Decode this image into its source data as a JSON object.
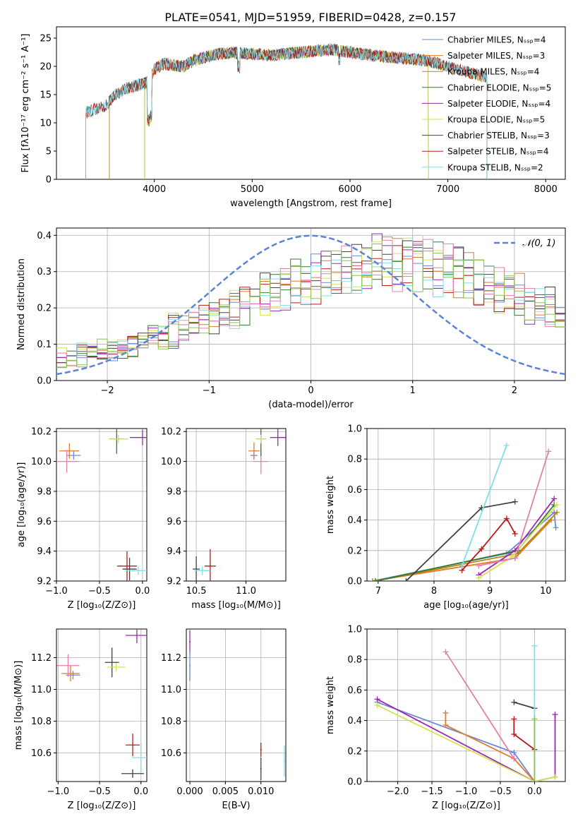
{
  "figure_title": "PLATE=0541, MJD=51959, FIBERID=0428, z=0.157",
  "colors": {
    "Chabrier MILES": "#6a89d9",
    "Salpeter MILES": "#e07b2a",
    "Kroupa MILES": "#b8860b",
    "Chabrier ELODIE": "#2e7d32",
    "Salpeter ELODIE": "#9c27b0",
    "Kroupa ELODIE": "#d4e157",
    "Chabrier STELIB": "#424242",
    "Salpeter STELIB": "#b71c1c",
    "Kroupa STELIB": "#80deea",
    "extra_pink": "#e67eb0",
    "extra_green": "#8bc34a",
    "gaussian": "#5b84d6"
  },
  "chart_data": [
    {
      "id": "spectrum",
      "type": "line",
      "title": "PLATE=0541, MJD=51959, FIBERID=0428, z=0.157",
      "xlabel": "wavelength [Angstrom, rest frame]",
      "ylabel": "Flux [fλ10⁻¹⁷ erg cm⁻² s⁻¹ A⁻¹]",
      "xlim": [
        3000,
        8200
      ],
      "ylim": [
        0,
        27
      ],
      "xticks": [
        "4000",
        "5000",
        "6000",
        "7000",
        "8000"
      ],
      "yticks": [
        "0",
        "5",
        "10",
        "15",
        "20",
        "25"
      ],
      "legend_position": "top-right",
      "legend": [
        "Chabrier MILES, Nₛₛₚ=4",
        "Salpeter MILES, Nₛₛₚ=3",
        "Kroupa MILES, Nₛₛₚ=4",
        "Chabrier ELODIE, Nₛₛₚ=5",
        "Salpeter ELODIE, Nₛₛₚ=4",
        "Kroupa ELODIE, Nₛₛₚ=5",
        "Chabrier STELIB, Nₛₛₚ=3",
        "Salpeter STELIB, Nₛₛₚ=4",
        "Kroupa STELIB, Nₛₛₚ=2"
      ],
      "continuum": {
        "x": [
          3300,
          3400,
          3500,
          3600,
          3700,
          3800,
          3900,
          3950,
          4000,
          4100,
          4200,
          4300,
          4400,
          4500,
          4600,
          4800,
          5000,
          5200,
          5500,
          5800,
          6000,
          6200,
          6500,
          6800,
          7000,
          7200,
          7400
        ],
        "y": [
          11.8,
          12.5,
          13.0,
          15.0,
          16.0,
          16.5,
          17.0,
          17.5,
          19.5,
          20.5,
          20.2,
          20.0,
          21.0,
          21.5,
          22.0,
          22.5,
          22.2,
          22.0,
          22.5,
          23.0,
          22.5,
          22.0,
          21.5,
          21.0,
          20.0,
          19.0,
          18.0
        ]
      }
    },
    {
      "id": "residuals",
      "type": "bar",
      "xlabel": "(data-model)/error",
      "ylabel": "Normed distribution",
      "xlim": [
        -2.5,
        2.5
      ],
      "ylim": [
        0,
        0.42
      ],
      "xticks": [
        "−2",
        "−1",
        "0",
        "1",
        "2"
      ],
      "yticks": [
        "0.0",
        "0.1",
        "0.2",
        "0.3",
        "0.4"
      ],
      "legend": [
        "𝒩(0, 1)"
      ],
      "legend_position": "top-right",
      "bin_edges_start": -2.5,
      "bin_width": 0.1,
      "envelope": [
        0.06,
        0.06,
        0.07,
        0.07,
        0.08,
        0.08,
        0.09,
        0.1,
        0.11,
        0.12,
        0.13,
        0.14,
        0.15,
        0.16,
        0.17,
        0.18,
        0.19,
        0.2,
        0.22,
        0.23,
        0.24,
        0.25,
        0.26,
        0.27,
        0.28,
        0.29,
        0.3,
        0.31,
        0.31,
        0.32,
        0.32,
        0.33,
        0.33,
        0.33,
        0.33,
        0.33,
        0.32,
        0.32,
        0.31,
        0.3,
        0.29,
        0.28,
        0.27,
        0.26,
        0.25,
        0.24,
        0.22,
        0.21,
        0.2,
        0.18
      ]
    },
    {
      "id": "age_vs_Z",
      "type": "scatter",
      "xlabel": "Z [log₁₀(Z/Z⊙)]",
      "ylabel": "age  [log₁₀(age/yr)]",
      "xlim": [
        -1.0,
        0.05
      ],
      "ylim": [
        9.2,
        10.22
      ],
      "xticks": [
        "−1.0",
        "−0.5",
        "0.0"
      ],
      "yticks": [
        "9.2",
        "9.4",
        "9.6",
        "9.8",
        "10.0",
        "10.2"
      ],
      "points": [
        {
          "x": -0.8,
          "y": 10.04,
          "c": "Chabrier MILES"
        },
        {
          "x": -0.85,
          "y": 10.07,
          "c": "Salpeter MILES"
        },
        {
          "x": -0.88,
          "y": 10.0,
          "c": "extra_pink"
        },
        {
          "x": -0.3,
          "y": 10.15,
          "c": "Chabrier ELODIE"
        },
        {
          "x": -0.28,
          "y": 10.15,
          "c": "Kroupa ELODIE"
        },
        {
          "x": 0.0,
          "y": 10.16,
          "c": "Salpeter ELODIE"
        },
        {
          "x": -0.15,
          "y": 9.28,
          "c": "Chabrier STELIB"
        },
        {
          "x": -0.18,
          "y": 9.3,
          "c": "Salpeter STELIB"
        },
        {
          "x": -0.05,
          "y": 9.27,
          "c": "Kroupa STELIB"
        }
      ]
    },
    {
      "id": "age_vs_mass",
      "type": "scatter",
      "xlabel": "mass [log₁₀(M/M⊙)]",
      "xlim": [
        10.4,
        11.4
      ],
      "ylim": [
        9.2,
        10.22
      ],
      "xticks": [
        "10.5",
        "11.0"
      ],
      "yticks": [
        "9.2",
        "9.4",
        "9.6",
        "9.8",
        "10.0",
        "10.2"
      ],
      "points": [
        {
          "x": 11.08,
          "y": 10.04,
          "c": "Chabrier MILES"
        },
        {
          "x": 11.08,
          "y": 10.07,
          "c": "Salpeter MILES"
        },
        {
          "x": 11.15,
          "y": 10.0,
          "c": "extra_pink"
        },
        {
          "x": 11.15,
          "y": 10.15,
          "c": "Chabrier ELODIE"
        },
        {
          "x": 11.15,
          "y": 10.15,
          "c": "Kroupa ELODIE"
        },
        {
          "x": 11.32,
          "y": 10.16,
          "c": "Salpeter ELODIE"
        },
        {
          "x": 10.5,
          "y": 9.28,
          "c": "Chabrier STELIB"
        },
        {
          "x": 10.64,
          "y": 9.3,
          "c": "Salpeter STELIB"
        },
        {
          "x": 10.56,
          "y": 9.27,
          "c": "Kroupa STELIB"
        }
      ]
    },
    {
      "id": "mass_weight_vs_age",
      "type": "line",
      "xlabel": "age  [log₁₀(age/yr)]",
      "ylabel": "mass weight",
      "xlim": [
        6.8,
        10.35
      ],
      "ylim": [
        0,
        1.0
      ],
      "xticks": [
        "7",
        "8",
        "9",
        "10"
      ],
      "yticks": [
        "0.0",
        "0.2",
        "0.4",
        "0.6",
        "0.8",
        "1.0"
      ],
      "series": [
        {
          "c": "Chabrier MILES",
          "x": [
            6.9,
            9.3,
            10.15,
            10.18
          ],
          "y": [
            0.0,
            0.18,
            0.45,
            0.35
          ]
        },
        {
          "c": "Salpeter MILES",
          "x": [
            6.9,
            9.45,
            10.1
          ],
          "y": [
            0.0,
            0.15,
            0.4
          ]
        },
        {
          "c": "Kroupa MILES",
          "x": [
            6.95,
            9.5,
            10.2
          ],
          "y": [
            0.0,
            0.18,
            0.45
          ]
        },
        {
          "c": "Chabrier ELODIE",
          "x": [
            6.95,
            9.5,
            10.15
          ],
          "y": [
            0.0,
            0.2,
            0.5
          ]
        },
        {
          "c": "Salpeter ELODIE",
          "x": [
            8.8,
            9.45,
            10.15
          ],
          "y": [
            0.04,
            0.2,
            0.54
          ]
        },
        {
          "c": "Kroupa ELODIE",
          "x": [
            8.8,
            9.4,
            10.2
          ],
          "y": [
            0.02,
            0.16,
            0.5
          ]
        },
        {
          "c": "Chabrier STELIB",
          "x": [
            7.5,
            8.85,
            9.45
          ],
          "y": [
            0.0,
            0.48,
            0.52
          ]
        },
        {
          "c": "Salpeter STELIB",
          "x": [
            8.5,
            8.85,
            9.3,
            9.45
          ],
          "y": [
            0.07,
            0.21,
            0.41,
            0.31
          ]
        },
        {
          "c": "Kroupa STELIB",
          "x": [
            8.5,
            9.3
          ],
          "y": [
            0.1,
            0.89
          ]
        },
        {
          "c": "extra_pink",
          "x": [
            8.8,
            9.45,
            10.05
          ],
          "y": [
            0.1,
            0.15,
            0.85
          ]
        }
      ]
    },
    {
      "id": "mass_vs_Z",
      "type": "scatter",
      "xlabel": "Z [log₁₀(Z/Z⊙)]",
      "ylabel": "mass [log₁₀(M/M⊙)]",
      "xlim": [
        -1.02,
        0.07
      ],
      "ylim": [
        10.42,
        11.38
      ],
      "xticks": [
        "−1.0",
        "−0.5",
        "0.0"
      ],
      "yticks": [
        "10.6",
        "10.8",
        "11.0",
        "11.2"
      ],
      "points": [
        {
          "x": -0.82,
          "y": 11.09,
          "c": "Chabrier MILES"
        },
        {
          "x": -0.85,
          "y": 11.1,
          "c": "Salpeter MILES"
        },
        {
          "x": -0.88,
          "y": 11.15,
          "c": "extra_pink"
        },
        {
          "x": -0.35,
          "y": 11.17,
          "c": "Chabrier STELIB"
        },
        {
          "x": -0.3,
          "y": 11.14,
          "c": "Kroupa ELODIE"
        },
        {
          "x": -0.05,
          "y": 11.34,
          "c": "Salpeter ELODIE"
        },
        {
          "x": -0.1,
          "y": 10.65,
          "c": "Salpeter STELIB"
        },
        {
          "x": 0.0,
          "y": 10.57,
          "c": "Kroupa STELIB"
        },
        {
          "x": -0.1,
          "y": 10.47,
          "c": "Chabrier STELIB"
        }
      ]
    },
    {
      "id": "mass_vs_ebv",
      "type": "scatter",
      "xlabel": "E(B-V)",
      "xlim": [
        -0.0005,
        0.0135
      ],
      "ylim": [
        10.42,
        11.38
      ],
      "xticks": [
        "0.000",
        "0.005",
        "0.010"
      ],
      "yticks": [
        "10.6",
        "10.8",
        "11.0",
        "11.2"
      ],
      "points": [
        {
          "x": 0.0,
          "y": 11.1,
          "c": "Kroupa ELODIE"
        },
        {
          "x": 0.0,
          "y": 11.3,
          "c": "Salpeter ELODIE"
        },
        {
          "x": 0.0,
          "y": 11.15,
          "c": "Chabrier MILES"
        },
        {
          "x": 0.01,
          "y": 10.62,
          "c": "Salpeter STELIB"
        },
        {
          "x": 0.01,
          "y": 10.5,
          "c": "Chabrier STELIB"
        },
        {
          "x": 0.0133,
          "y": 10.55,
          "c": "Kroupa STELIB"
        }
      ]
    },
    {
      "id": "mass_weight_vs_Z",
      "type": "line",
      "xlabel": "Z [log₁₀(Z/Z⊙)]",
      "ylabel": "mass weight",
      "xlim": [
        -2.45,
        0.45
      ],
      "ylim": [
        0,
        1.0
      ],
      "xticks": [
        "−2.0",
        "−1.5",
        "−1.0",
        "−0.5",
        "0.0"
      ],
      "yticks": [
        "0.0",
        "0.2",
        "0.4",
        "0.6",
        "0.8",
        "1.0"
      ],
      "series": [
        {
          "c": "Chabrier MILES",
          "x": [
            -2.3,
            -0.3,
            0.0
          ],
          "y": [
            0.52,
            0.19,
            0.0
          ]
        },
        {
          "c": "Salpeter MILES",
          "x": [
            -1.3,
            -1.3,
            -0.3,
            0.0
          ],
          "y": [
            0.45,
            0.37,
            0.15,
            0.0
          ]
        },
        {
          "c": "Salpeter ELODIE",
          "x": [
            -2.3,
            0.0,
            0.3,
            0.3
          ],
          "y": [
            0.54,
            0.0,
            0.03,
            0.44
          ]
        },
        {
          "c": "Kroupa ELODIE",
          "x": [
            -2.3,
            0.0,
            0.3
          ],
          "y": [
            0.5,
            0.0,
            0.03
          ]
        },
        {
          "c": "Chabrier STELIB",
          "x": [
            -0.3,
            0.0
          ],
          "y": [
            0.52,
            0.48
          ]
        },
        {
          "c": "Salpeter STELIB",
          "x": [
            -0.3,
            -0.3,
            0.0
          ],
          "y": [
            0.41,
            0.31,
            0.21
          ]
        },
        {
          "c": "Kroupa STELIB",
          "x": [
            0.0,
            0.0
          ],
          "y": [
            0.0,
            0.89
          ]
        },
        {
          "c": "extra_pink",
          "x": [
            -1.3,
            -0.3
          ],
          "y": [
            0.85,
            0.15
          ]
        },
        {
          "c": "extra_green",
          "x": [
            0.0,
            0.0
          ],
          "y": [
            0.0,
            0.41
          ]
        }
      ]
    }
  ]
}
